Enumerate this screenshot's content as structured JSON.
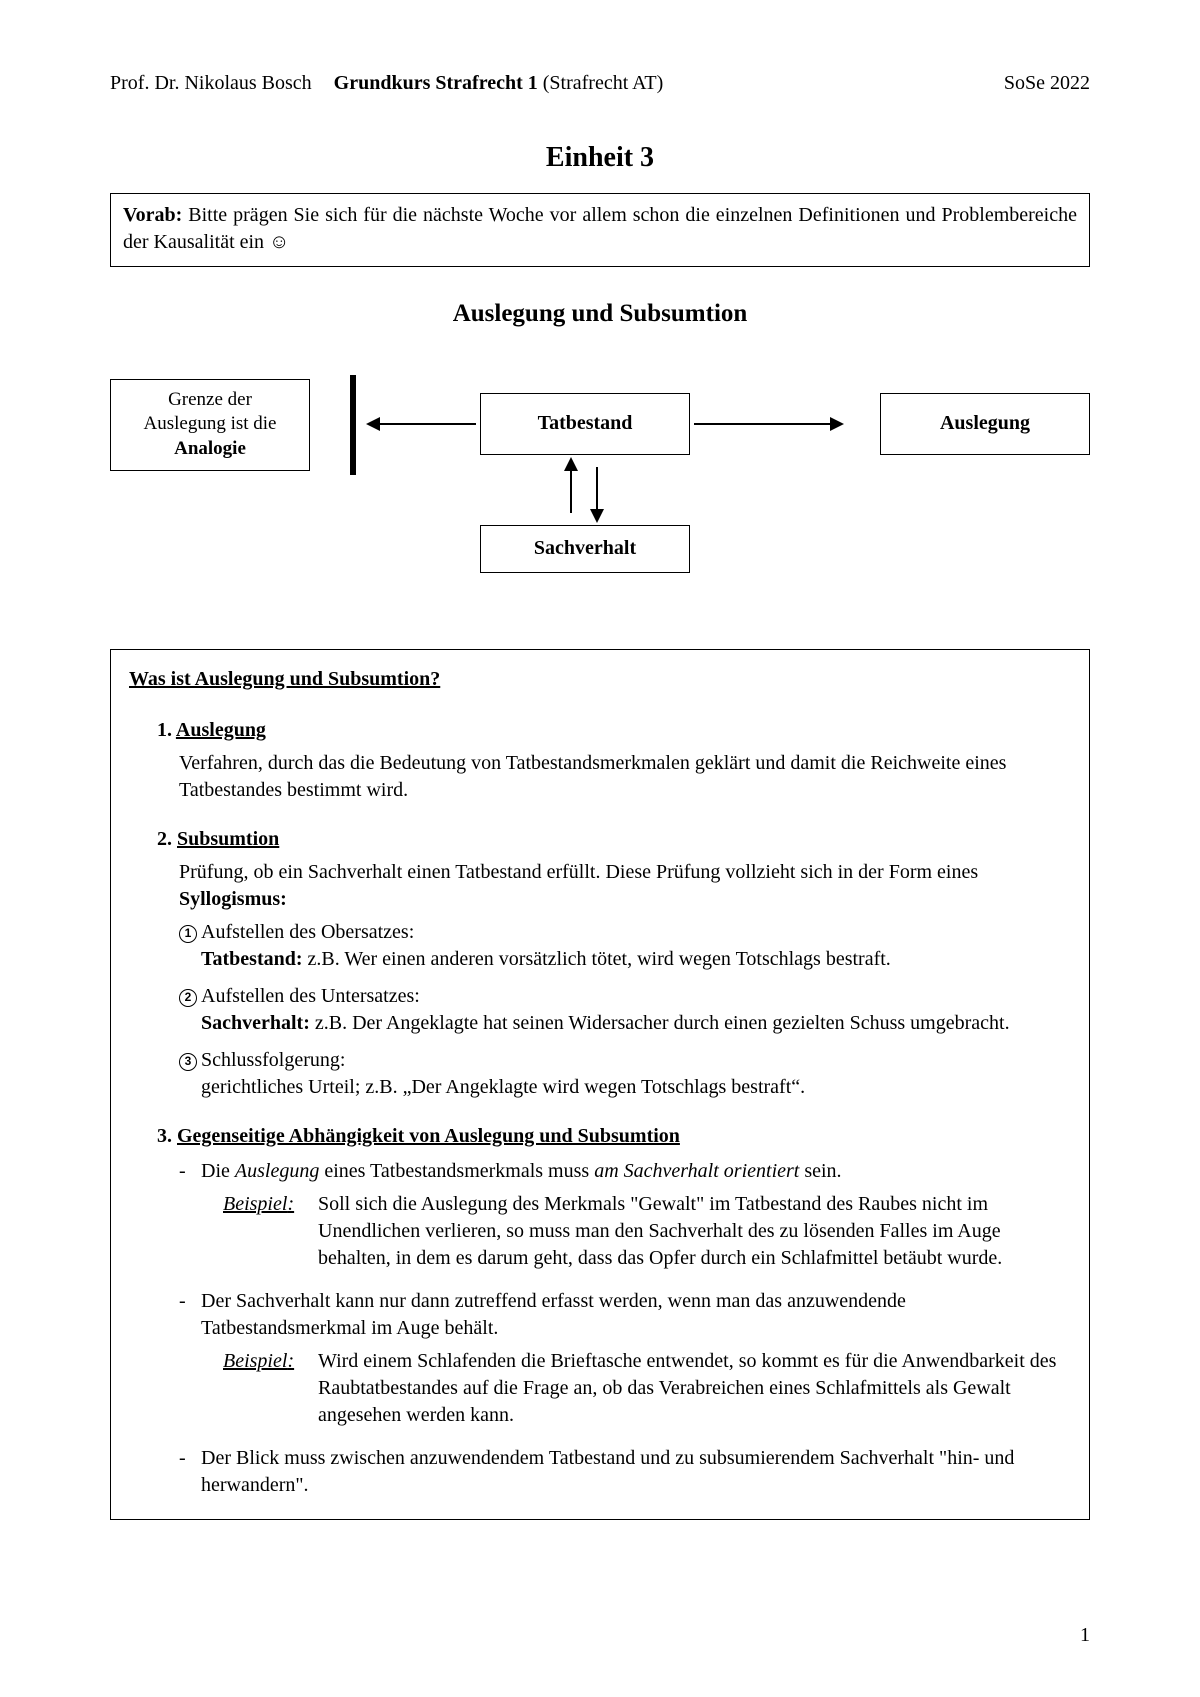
{
  "header": {
    "author": "Prof. Dr. Nikolaus Bosch",
    "course_bold": "Grundkurs Strafrecht 1",
    "course_paren": " (Strafrecht AT)",
    "term": "SoSe 2022"
  },
  "unit_title": "Einheit 3",
  "vorab": {
    "label": "Vorab:",
    "text": " Bitte prägen Sie sich für die nächste Woche vor allem schon die einzelnen Definitionen und Problembereiche der Kausalität ein ☺"
  },
  "section_title": "Auslegung und Subsumtion",
  "diagram": {
    "analogie_l1": "Grenze der",
    "analogie_l2": "Auslegung ist die",
    "analogie_l3": "Analogie",
    "tatbestand": "Tatbestand",
    "auslegung": "Auslegung",
    "sachverhalt": "Sachverhalt"
  },
  "q_title": "Was ist Auslegung und Subsumtion?",
  "s1": {
    "num": "1.",
    "title": "Auslegung",
    "body": "Verfahren, durch das die Bedeutung von Tatbestandsmerkmalen geklärt und damit die Reichweite eines Tatbestandes bestimmt wird."
  },
  "s2": {
    "num": "2.",
    "title": "Subsumtion",
    "intro_pre": "Prüfung, ob ein Sachverhalt einen Tatbestand erfüllt. Diese Prüfung vollzieht sich in der Form eines ",
    "intro_bold": "Syllogismus:",
    "items": [
      {
        "n": "1",
        "head": "Aufstellen des Obersatzes:",
        "lead_bold": "Tatbestand:",
        "lead_rest": " z.B. Wer einen anderen vorsätzlich tötet, wird wegen Totschlags bestraft."
      },
      {
        "n": "2",
        "head": "Aufstellen des Untersatzes:",
        "lead_bold": "Sachverhalt:",
        "lead_rest": " z.B. Der Angeklagte hat seinen Widersacher durch einen gezielten Schuss umgebracht."
      },
      {
        "n": "3",
        "head": "Schlussfolgerung:",
        "lead_bold": "",
        "lead_rest": "gerichtliches Urteil; z.B. „Der Angeklagte wird wegen Totschlags bestraft“."
      }
    ]
  },
  "s3": {
    "num": "3.",
    "title": "Gegenseitige Abhängigkeit von Auslegung und Subsumtion",
    "b1_pre": "Die ",
    "b1_it1": "Auslegung",
    "b1_mid": " eines Tatbestandsmerkmals muss ",
    "b1_it2": "am Sachverhalt orientiert",
    "b1_post": " sein.",
    "ex_label": "Beispiel",
    "ex1": "Soll sich die Auslegung des Merkmals \"Gewalt\" im Tatbestand des Raubes nicht im Unendlichen verlieren, so muss man den Sachverhalt des zu lösenden Falles im Auge behalten, in dem es darum geht, dass das Opfer durch ein Schlafmittel betäubt wurde.",
    "b2": "Der Sachverhalt kann nur dann zutreffend erfasst werden, wenn man das anzuwendende Tatbestandsmerkmal im Auge behält.",
    "ex2": "Wird einem Schlafenden die Brieftasche entwendet, so kommt es für die Anwend­barkeit des Raubtatbestandes auf die Frage an, ob das Verabreichen eines Schlaf­mittels als Gewalt angesehen werden kann.",
    "b3": "Der Blick muss zwischen anzuwendendem Tatbestand und zu subsumierendem Sachverhalt \"hin- und herwandern\"."
  },
  "page_number": "1"
}
